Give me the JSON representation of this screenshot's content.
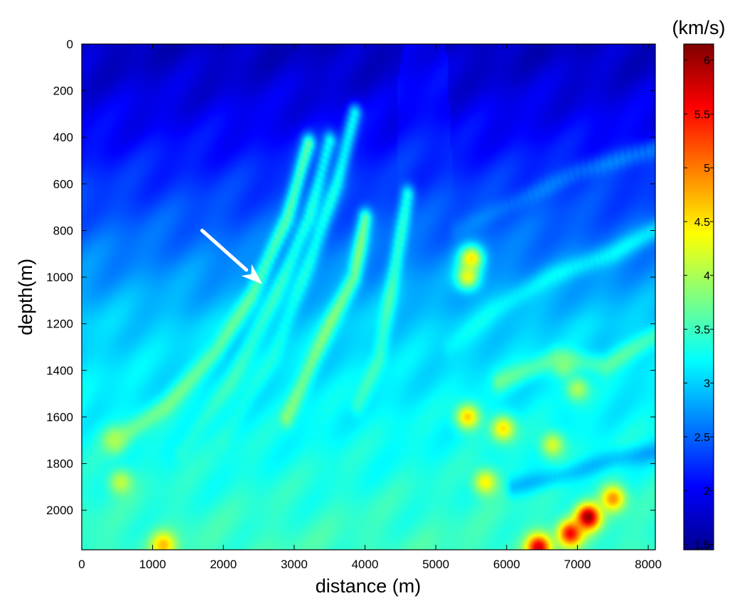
{
  "chart_data": {
    "type": "heatmap",
    "xlabel": "distance (m)",
    "ylabel": "depth(m)",
    "colorbar_unit": "(km/s)",
    "xlim": [
      0,
      8100
    ],
    "ylim": [
      0,
      2170
    ],
    "y_direction": "down",
    "x_ticks": [
      0,
      1000,
      2000,
      3000,
      4000,
      5000,
      6000,
      7000,
      8000
    ],
    "y_ticks": [
      0,
      200,
      400,
      600,
      800,
      1000,
      1200,
      1400,
      1600,
      1800,
      2000
    ],
    "colorbar": {
      "range": [
        1.45,
        6.15
      ],
      "ticks": [
        "1.5",
        "2",
        "2.5",
        "3",
        "3.5",
        "4",
        "4.5",
        "5",
        "5.5",
        "6"
      ],
      "colormap": "jet"
    },
    "background_velocity": {
      "surface": 1.75,
      "depth_1200": 3.0,
      "depth_2170": 3.5
    },
    "reflectors": [
      {
        "points": [
          [
            500,
            1700
          ],
          [
            1200,
            1550
          ],
          [
            1900,
            1320
          ],
          [
            2400,
            1080
          ],
          [
            2900,
            750
          ],
          [
            3200,
            430
          ]
        ],
        "velocity": 3.8
      },
      {
        "points": [
          [
            1400,
            1750
          ],
          [
            2100,
            1450
          ],
          [
            2700,
            1100
          ],
          [
            3200,
            750
          ],
          [
            3500,
            420
          ]
        ],
        "velocity": 3.5
      },
      {
        "points": [
          [
            2000,
            1700
          ],
          [
            2700,
            1350
          ],
          [
            3200,
            950
          ],
          [
            3600,
            600
          ],
          [
            3850,
            300
          ]
        ],
        "velocity": 3.4
      },
      {
        "points": [
          [
            2900,
            1600
          ],
          [
            3500,
            1200
          ],
          [
            3850,
            1000
          ],
          [
            4000,
            750
          ]
        ],
        "velocity": 3.9
      },
      {
        "points": [
          [
            3900,
            1550
          ],
          [
            4200,
            1350
          ],
          [
            4400,
            1000
          ],
          [
            4600,
            650
          ]
        ],
        "velocity": 3.6
      },
      {
        "points": [
          [
            5200,
            1300
          ],
          [
            5800,
            1150
          ],
          [
            6600,
            1000
          ],
          [
            7500,
            900
          ],
          [
            8100,
            800
          ]
        ],
        "velocity": 3.2
      },
      {
        "points": [
          [
            5300,
            800
          ],
          [
            6000,
            700
          ],
          [
            7000,
            550
          ],
          [
            8100,
            450
          ]
        ],
        "velocity": 2.7
      },
      {
        "points": [
          [
            5900,
            1450
          ],
          [
            6700,
            1350
          ],
          [
            7400,
            1380
          ],
          [
            8100,
            1250
          ]
        ],
        "velocity": 3.7
      },
      {
        "points": [
          [
            6100,
            1900
          ],
          [
            6800,
            1850
          ],
          [
            7500,
            1780
          ],
          [
            8100,
            1750
          ]
        ],
        "velocity": 2.8
      }
    ],
    "anomalies": [
      {
        "x": 7150,
        "depth": 2030,
        "velocity": 6.1
      },
      {
        "x": 6900,
        "depth": 2100,
        "velocity": 5.6
      },
      {
        "x": 7500,
        "depth": 1950,
        "velocity": 4.9
      },
      {
        "x": 6450,
        "depth": 2160,
        "velocity": 5.8
      },
      {
        "x": 5450,
        "depth": 1000,
        "velocity": 4.3
      },
      {
        "x": 5500,
        "depth": 920,
        "velocity": 4.5
      },
      {
        "x": 5450,
        "depth": 1600,
        "velocity": 4.6
      },
      {
        "x": 5950,
        "depth": 1650,
        "velocity": 4.5
      },
      {
        "x": 5700,
        "depth": 1880,
        "velocity": 4.4
      },
      {
        "x": 6650,
        "depth": 1720,
        "velocity": 4.2
      },
      {
        "x": 1150,
        "depth": 2150,
        "velocity": 4.7
      },
      {
        "x": 550,
        "depth": 1880,
        "velocity": 4.1
      },
      {
        "x": 7000,
        "depth": 1480,
        "velocity": 4.0
      },
      {
        "x": 6800,
        "depth": 1380,
        "velocity": 3.8
      },
      {
        "x": 450,
        "depth": 1700,
        "velocity": 4.0
      }
    ],
    "annotations": [
      {
        "type": "arrow",
        "color": "#ffffff",
        "from": [
          1700,
          800
        ],
        "to": [
          2550,
          1030
        ]
      }
    ]
  }
}
